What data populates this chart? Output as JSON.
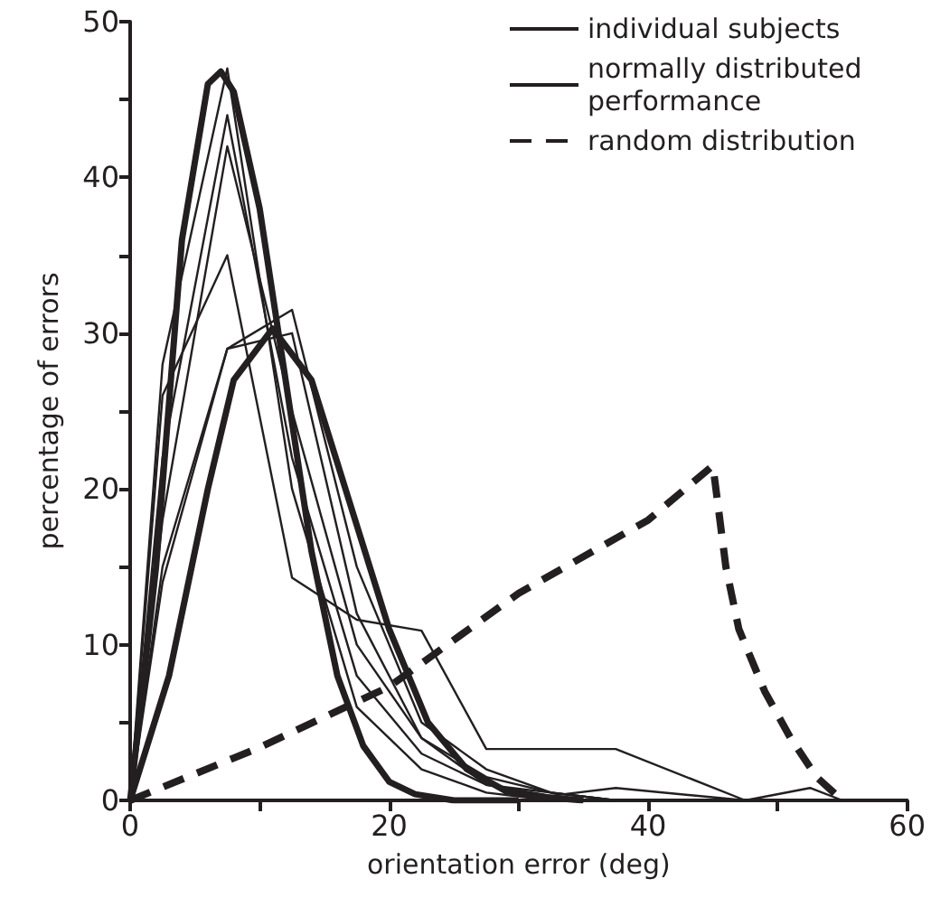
{
  "chart_data": {
    "type": "line",
    "xlabel": "orientation error (deg)",
    "ylabel": "percentage of errors",
    "xlim": [
      0,
      60
    ],
    "xticks": [
      0,
      {
        "value": 10,
        "label": null
      },
      20,
      {
        "value": 30,
        "label": null
      },
      40,
      {
        "value": 50,
        "label": null
      },
      60
    ],
    "ylim": [
      0,
      50
    ],
    "yticks": [
      0,
      {
        "value": 5,
        "label": null
      },
      10,
      {
        "value": 15,
        "label": null
      },
      20,
      {
        "value": 25,
        "label": null
      },
      30,
      {
        "value": 35,
        "label": null
      },
      40,
      {
        "value": 45,
        "label": null
      },
      50
    ],
    "grid": false,
    "legend": "top right",
    "marker": "none",
    "series": [
      {
        "name": "individual subjects",
        "color": "#231f20",
        "line_style": "solid",
        "x": [
          0,
          2.5,
          7.5,
          12.5,
          17.5,
          22.5,
          27.5,
          32.5,
          37.5,
          47.5,
          55
        ],
        "values": [
          0,
          28,
          47,
          20,
          6,
          2,
          0.5,
          0,
          0,
          0,
          0
        ]
      },
      {
        "color": "#231f20",
        "line_style": "solid",
        "x": [
          0,
          2.5,
          7.5,
          12.5,
          17.5,
          22.5,
          27.5,
          32.5,
          37.5,
          47.5,
          55
        ],
        "values": [
          0,
          22,
          44,
          22,
          8,
          3,
          1,
          0.5,
          0,
          0,
          0
        ]
      },
      {
        "color": "#231f20",
        "line_style": "solid",
        "x": [
          0,
          2.5,
          7.5,
          12.5,
          17.5,
          22.5,
          27.5,
          32.5,
          37.5,
          47.5,
          52.5,
          55
        ],
        "values": [
          0,
          18,
          42,
          25,
          10,
          4,
          1.5,
          0.5,
          0,
          0,
          0.8,
          0
        ]
      },
      {
        "color": "#231f20",
        "line_style": "solid",
        "x": [
          0,
          2.5,
          7.5,
          12.5,
          17.5,
          22.5,
          27.5,
          37.5,
          47.5,
          55
        ],
        "values": [
          0,
          26,
          35,
          14.3,
          11.6,
          10.9,
          3.3,
          3.3,
          0,
          0
        ]
      },
      {
        "color": "#231f20",
        "line_style": "solid",
        "x": [
          0,
          2.5,
          7.5,
          12.5,
          17.5,
          22.5,
          27.5,
          32.5,
          37.5,
          55
        ],
        "values": [
          0,
          15,
          29,
          31.5,
          15,
          5,
          2,
          0.5,
          0,
          0
        ]
      },
      {
        "color": "#231f20",
        "line_style": "solid",
        "x": [
          0,
          2.5,
          7.5,
          12.5,
          17.5,
          22.5,
          27.5,
          32.5,
          37.5,
          47.5,
          55
        ],
        "values": [
          0,
          14,
          29,
          30,
          12,
          4,
          1,
          0.3,
          0.8,
          0,
          0
        ]
      },
      {
        "name": "normally distributed performance",
        "color": "#231f20",
        "line_style": "solid",
        "x": [
          0,
          2,
          4,
          6,
          7,
          8,
          10,
          12,
          14,
          16,
          18,
          20,
          22,
          25,
          30
        ],
        "values": [
          0,
          15,
          36,
          46,
          46.8,
          45.5,
          38,
          27,
          16,
          8,
          3.5,
          1.2,
          0.4,
          0,
          0
        ]
      },
      {
        "color": "#231f20",
        "line_style": "solid",
        "x": [
          0,
          3,
          6,
          8,
          11,
          14,
          17,
          20,
          23,
          26,
          29,
          32,
          35
        ],
        "values": [
          0,
          8,
          20,
          27,
          30.3,
          27,
          19,
          11,
          5,
          2,
          0.6,
          0.2,
          0
        ]
      },
      {
        "name": "random distribution",
        "color": "#231f20",
        "line_style": "dashed",
        "x": [
          0,
          10,
          20,
          30,
          40,
          45,
          46,
          47,
          49,
          51,
          53,
          55
        ],
        "values": [
          0,
          3.4,
          7.3,
          13.3,
          18,
          21.5,
          15,
          11,
          7,
          4,
          1.5,
          0
        ]
      }
    ]
  }
}
